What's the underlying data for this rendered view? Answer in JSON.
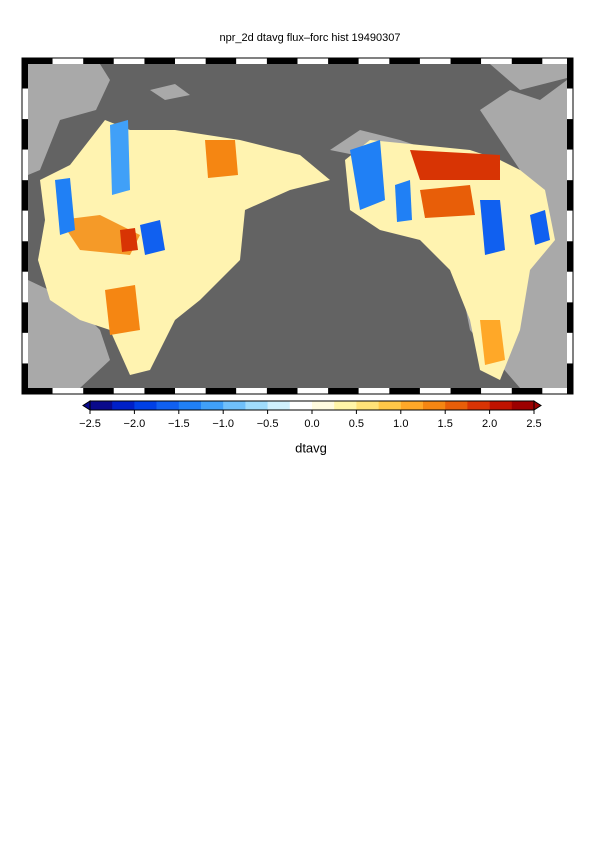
{
  "chart_data": {
    "type": "map",
    "title": "npr_2d dtavg flux–forc hist 19490307",
    "colorbar_label": "dtavg",
    "clim": [
      -2.5,
      2.5
    ],
    "colors": [
      "#0a0a8c",
      "#0020c8",
      "#0040e6",
      "#1060f0",
      "#2080f5",
      "#40a0f8",
      "#70c0fa",
      "#a0dcfc",
      "#d0f0fd",
      "#ffffff",
      "#fffbe0",
      "#fff5a8",
      "#ffe278",
      "#ffc848",
      "#ffa828",
      "#f58612",
      "#e85e08",
      "#d83404",
      "#bf1200",
      "#9c0000"
    ],
    "ticks": [
      {
        "value": -2.5,
        "label": "−2.5"
      },
      {
        "value": -2.0,
        "label": "−2.0"
      },
      {
        "value": -1.5,
        "label": "−1.5"
      },
      {
        "value": -1.0,
        "label": "−1.0"
      },
      {
        "value": -0.5,
        "label": "−0.5"
      },
      {
        "value": 0.0,
        "label": "0.0"
      },
      {
        "value": 0.5,
        "label": "0.5"
      },
      {
        "value": 1.0,
        "label": "1.0"
      },
      {
        "value": 1.5,
        "label": "1.5"
      },
      {
        "value": 2.0,
        "label": "2.0"
      },
      {
        "value": 2.5,
        "label": "2.5"
      }
    ]
  }
}
